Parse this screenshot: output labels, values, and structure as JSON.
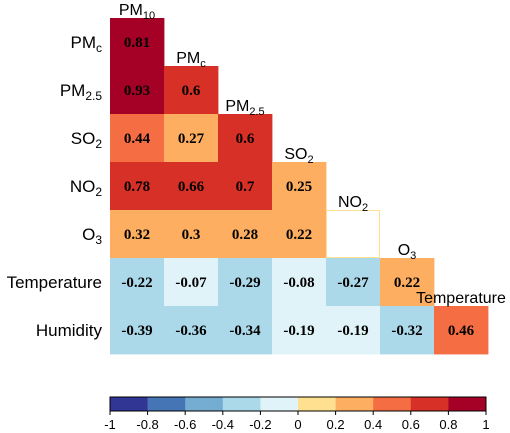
{
  "chart_data": {
    "type": "heatmap",
    "layout": "lower-triangle correlation matrix",
    "columns": [
      {
        "base": "PM",
        "sub": "10"
      },
      {
        "base": "PM",
        "sub": "c"
      },
      {
        "base": "PM",
        "sub": "2.5"
      },
      {
        "base": "SO",
        "sub": "2"
      },
      {
        "base": "NO",
        "sub": "2"
      },
      {
        "base": "O",
        "sub": "3"
      },
      {
        "base": "Temperature",
        "sub": ""
      }
    ],
    "rows": [
      {
        "base": "PM",
        "sub": "c"
      },
      {
        "base": "PM",
        "sub": "2.5"
      },
      {
        "base": "SO",
        "sub": "2"
      },
      {
        "base": "NO",
        "sub": "2"
      },
      {
        "base": "O",
        "sub": "3"
      },
      {
        "base": "Temperature",
        "sub": ""
      },
      {
        "base": "Humidity",
        "sub": ""
      }
    ],
    "values": [
      [
        0.81
      ],
      [
        0.93,
        0.6
      ],
      [
        0.44,
        0.27,
        0.6
      ],
      [
        0.78,
        0.66,
        0.7,
        0.25
      ],
      [
        0.32,
        0.3,
        0.28,
        0.22,
        null
      ],
      [
        -0.22,
        -0.07,
        -0.29,
        -0.08,
        -0.27,
        0.22
      ],
      [
        -0.39,
        -0.36,
        -0.34,
        -0.19,
        -0.19,
        -0.32,
        0.46
      ]
    ],
    "value_labels": [
      [
        "0.81"
      ],
      [
        "0.93",
        "0.6"
      ],
      [
        "0.44",
        "0.27",
        "0.6"
      ],
      [
        "0.78",
        "0.66",
        "0.7",
        "0.25"
      ],
      [
        "0.32",
        "0.3",
        "0.28",
        "0.22",
        ""
      ],
      [
        "-0.22",
        "-0.07",
        "-0.29",
        "-0.08",
        "-0.27",
        "0.22"
      ],
      [
        "-0.39",
        "-0.36",
        "-0.34",
        "-0.19",
        "-0.19",
        "-0.32",
        "0.46"
      ]
    ],
    "colorbar": {
      "range": [
        -1,
        1
      ],
      "ticks": [
        "-1",
        "-0.8",
        "-0.6",
        "-0.4",
        "-0.2",
        "0",
        "0.2",
        "0.4",
        "0.6",
        "0.8",
        "1"
      ],
      "bins": [
        {
          "from": -1.0,
          "to": -0.8,
          "color": "#313695"
        },
        {
          "from": -0.8,
          "to": -0.6,
          "color": "#4575b4"
        },
        {
          "from": -0.6,
          "to": -0.4,
          "color": "#74add1"
        },
        {
          "from": -0.4,
          "to": -0.2,
          "color": "#abd9e9"
        },
        {
          "from": -0.2,
          "to": 0.0,
          "color": "#e0f3f8"
        },
        {
          "from": 0.0,
          "to": 0.2,
          "color": "#fee090"
        },
        {
          "from": 0.2,
          "to": 0.4,
          "color": "#fdae61"
        },
        {
          "from": 0.4,
          "to": 0.6,
          "color": "#f46d43"
        },
        {
          "from": 0.6,
          "to": 0.8,
          "color": "#d73027"
        },
        {
          "from": 0.8,
          "to": 1.0,
          "color": "#a50026"
        }
      ]
    },
    "grid": false,
    "legend": "bottom"
  }
}
